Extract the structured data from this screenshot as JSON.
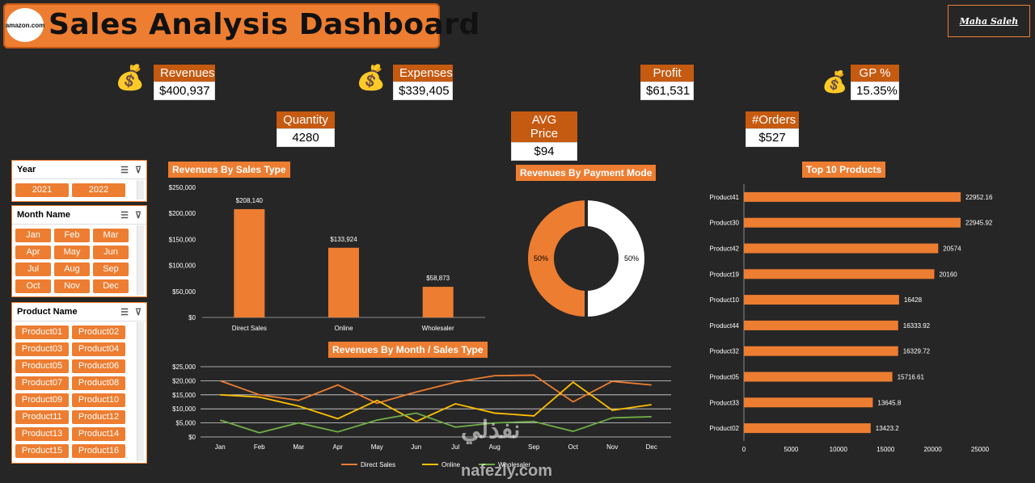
{
  "header": {
    "logo_text": "amazon.com",
    "title": "Sales Analysis Dashboard",
    "signature": "Maha Saleh"
  },
  "kpis": {
    "revenues": {
      "label": "Revenues",
      "value": "$400,937",
      "icon": "money-bags-icon"
    },
    "expenses": {
      "label": "Expenses",
      "value": "$339,405",
      "icon": "money-hand-icon"
    },
    "profit": {
      "label": "Profit",
      "value": "$61,531"
    },
    "gp": {
      "label": "GP %",
      "value": "15.35%",
      "icon": "coins-bag-icon"
    },
    "quantity": {
      "label": "Quantity",
      "value": "4280"
    },
    "avg_price": {
      "label": "AVG Price",
      "value": "$94"
    },
    "orders": {
      "label": "#Orders",
      "value": "$527"
    }
  },
  "slicers": {
    "year": {
      "title": "Year",
      "items": [
        "2021",
        "2022"
      ]
    },
    "month": {
      "title": "Month Name",
      "items": [
        "Jan",
        "Feb",
        "Mar",
        "Apr",
        "May",
        "Jun",
        "Jul",
        "Aug",
        "Sep",
        "Oct",
        "Nov",
        "Dec"
      ]
    },
    "product": {
      "title": "Product Name",
      "items": [
        "Product01",
        "Product02",
        "Product03",
        "Product04",
        "Product05",
        "Product06",
        "Product07",
        "Product08",
        "Product09",
        "Product10",
        "Product11",
        "Product12",
        "Product13",
        "Product14",
        "Product15",
        "Product16"
      ]
    }
  },
  "colors": {
    "accent": "#ed7d31",
    "accent_dark": "#c55a11",
    "background": "#262626",
    "line_gold": "#ffc000",
    "line_green": "#70ad47"
  },
  "watermark": {
    "arabic": "نفذلي",
    "latin": "nafezly.com"
  },
  "chart_data": [
    {
      "type": "bar",
      "title": "Revenues By Sales Type",
      "categories": [
        "Direct Sales",
        "Online",
        "Wholesaler"
      ],
      "values": [
        208140,
        133924,
        58873
      ],
      "data_labels": [
        "$208,140",
        "$133,924",
        "$58,873"
      ],
      "ylim": [
        0,
        250000
      ],
      "yticks": [
        "$0",
        "$50,000",
        "$100,000",
        "$150,000",
        "$200,000",
        "$250,000"
      ]
    },
    {
      "type": "pie",
      "title": "Revenues By Payment Mode",
      "slices": [
        {
          "label": "50%",
          "value": 50,
          "color": "#ed7d31"
        },
        {
          "label": "50%",
          "value": 50,
          "color": "#ffffff"
        }
      ]
    },
    {
      "type": "bar",
      "title": "Top 10 Products",
      "orientation": "horizontal",
      "categories": [
        "Product41",
        "Product30",
        "Product42",
        "Product19",
        "Product10",
        "Product44",
        "Product32",
        "Product05",
        "Product33",
        "Product02"
      ],
      "values": [
        22952.16,
        22945.92,
        20574,
        20160,
        16428,
        16333.92,
        16329.72,
        15716.61,
        13645.8,
        13423.2
      ],
      "data_labels": [
        "22952.16",
        "22945.92",
        "20574",
        "20160",
        "16428",
        "16333.92",
        "16329.72",
        "15716.61",
        "13645.8",
        "13423.2"
      ],
      "xlim": [
        0,
        25000
      ],
      "xticks": [
        "0",
        "5000",
        "10000",
        "15000",
        "20000",
        "25000"
      ]
    },
    {
      "type": "line",
      "title": "Revenues By Month / Sales Type",
      "categories": [
        "Jan",
        "Feb",
        "Mar",
        "Apr",
        "May",
        "Jun",
        "Jul",
        "Aug",
        "Sep",
        "Oct",
        "Nov",
        "Dec"
      ],
      "ylim": [
        0,
        25000
      ],
      "yticks": [
        "$0",
        "$5,000",
        "$10,000",
        "$15,000",
        "$20,000",
        "$25,000"
      ],
      "series": [
        {
          "name": "Direct Sales",
          "color": "#ed7d31",
          "values": [
            20000,
            15000,
            13000,
            18500,
            12000,
            16000,
            19500,
            21800,
            22000,
            12500,
            19800,
            18500
          ]
        },
        {
          "name": "Online",
          "color": "#ffc000",
          "values": [
            15000,
            14200,
            11000,
            6500,
            13000,
            5500,
            11800,
            8500,
            7500,
            19500,
            9500,
            11500
          ]
        },
        {
          "name": "Wholesaler",
          "color": "#70ad47",
          "values": [
            6000,
            1500,
            5000,
            1800,
            6000,
            8500,
            3500,
            5000,
            5500,
            2000,
            6800,
            7200
          ]
        }
      ]
    }
  ]
}
